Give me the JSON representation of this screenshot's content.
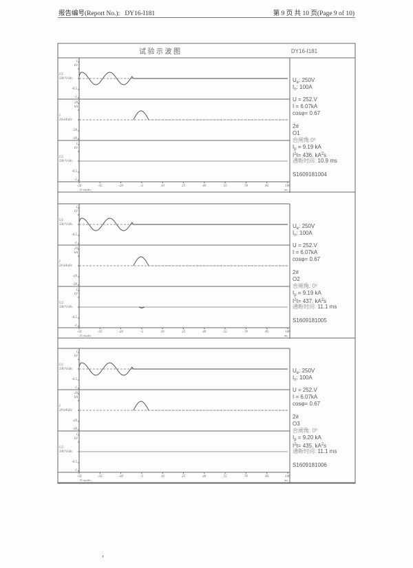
{
  "header": {
    "report_no_label": "报告编号(Report No.):",
    "report_no": "DY16-I181",
    "page_info": "第 9 页 共 10 页(Page 9 of 10)"
  },
  "table": {
    "title": "试  验  示  波  图",
    "code": "DY16-I181"
  },
  "axes": {
    "x_ticks": [
      "-50",
      "-35",
      "-20",
      "-5",
      "10",
      "25",
      "40",
      "55",
      "70",
      "85",
      "100"
    ],
    "x_values": [
      -50,
      -35,
      -20,
      -5,
      10,
      25,
      40,
      55,
      70,
      85,
      100
    ],
    "x_unit": "ms",
    "x_div": "15 ms/div",
    "voltage_channel": {
      "top": "1",
      "unit": "kV",
      "name": "U1",
      "div": "500 V/div",
      "mid": "-0.5",
      "bottom": "-1"
    },
    "current_channel": {
      "top": "20",
      "unit": "kA",
      "name": "I",
      "div": "20 kA/div",
      "mid": "-20",
      "bottom": "-30"
    },
    "voltage2_channel": {
      "top": "1",
      "unit": "kV",
      "name": "U2",
      "div": "500 V/div",
      "mid": "-0.5",
      "bottom": "-1"
    }
  },
  "panels": [
    {
      "ue_label": "U",
      "ue_sub": "e",
      "ue_value": ": 250V",
      "in_label": "I",
      "in_sub": "n",
      "in_value": ": 100A",
      "u": "U =  252.V",
      "i": "I  =  6.07kA",
      "cos": "cosφ=  0.67",
      "sample": "2#",
      "op": "O1",
      "angle": "合闸角:0º",
      "ip_label": "I",
      "ip_sub": "p",
      "ip_value": " = 9.19 kA",
      "i2t_label": "I",
      "i2t_sup": "2",
      "i2t_value": "t= 436. kA",
      "i2t_unit_sup": "2",
      "i2t_tail": "s",
      "break_label": "通断时间:",
      "break_value": " 10.9 ms",
      "id": "S1609181004",
      "u2_blip": false
    },
    {
      "ue_label": "U",
      "ue_sub": "e",
      "ue_value": ": 250V",
      "in_label": "I",
      "in_sub": "n",
      "in_value": ": 100A",
      "u": "U =  252.V",
      "i": "I  =  6.07kA",
      "cos": "cosφ=  0.67",
      "sample": "2#",
      "op": "O2",
      "angle": "合闸角: 0º",
      "ip_label": "I",
      "ip_sub": "p",
      "ip_value": " = 9.19 kA",
      "i2t_label": "I",
      "i2t_sup": "2",
      "i2t_value": "t= 437. kA",
      "i2t_unit_sup": "2",
      "i2t_tail": "s",
      "break_label": "通断时间:",
      "break_value": " 11.1 ms",
      "id": "S1609181005",
      "u2_blip": true
    },
    {
      "ue_label": "U",
      "ue_sub": "e",
      "ue_value": ": 250V",
      "in_label": "I",
      "in_sub": "n",
      "in_value": ": 100A",
      "u": "U =  252.V",
      "i": "I  =  6.07kA",
      "cos": "cosφ=  0.67",
      "sample": "2#",
      "op": "O3",
      "angle": "合闸角: 0º",
      "ip_label": "I",
      "ip_sub": "p",
      "ip_value": " = 9.20 kA",
      "i2t_label": "I",
      "i2t_sup": "2",
      "i2t_value": "t= 435. kA",
      "i2t_unit_sup": "2",
      "i2t_tail": "s",
      "break_label": "通断时间:",
      "break_value": " 11.1 ms",
      "id": "S1609181006",
      "u2_blip": false
    }
  ],
  "colors": {
    "ink": "#555555",
    "trace": "#444444",
    "grid": "#888888"
  }
}
